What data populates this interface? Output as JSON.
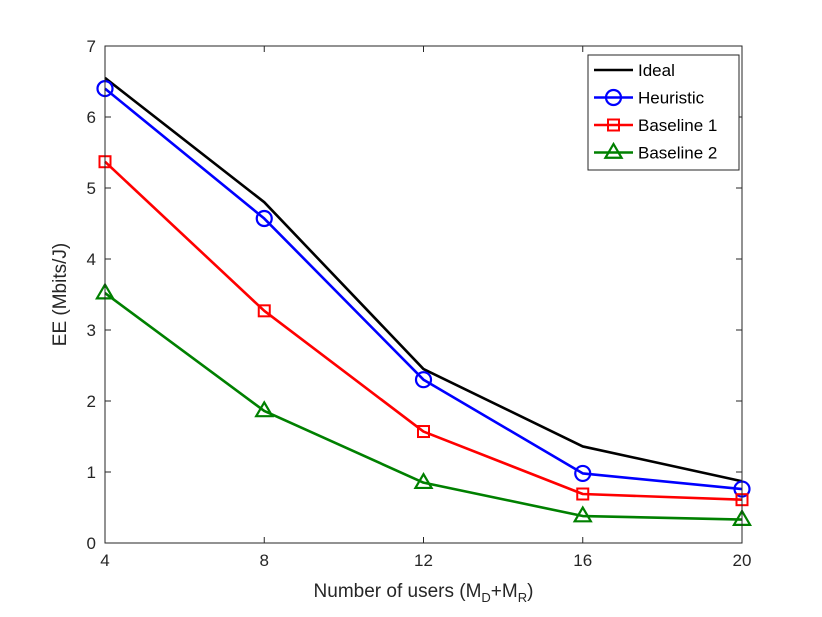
{
  "chart_data": {
    "type": "line",
    "title": "",
    "xlabel": "Number of users (M_D+M_R)",
    "xlabel_parts": {
      "prefix": "Number of users (M",
      "sub1": "D",
      "mid": "+M",
      "sub2": "R",
      "suffix": ")"
    },
    "ylabel": "EE (Mbits/J)",
    "x": [
      4,
      8,
      12,
      16,
      20
    ],
    "xlim": [
      4,
      20
    ],
    "ylim": [
      0,
      7
    ],
    "xticks": [
      "4",
      "8",
      "12",
      "16",
      "20"
    ],
    "yticks": [
      "0",
      "1",
      "2",
      "3",
      "4",
      "5",
      "6",
      "7"
    ],
    "grid": false,
    "legend_position": "top-right",
    "series": [
      {
        "name": "Ideal",
        "color": "#000000",
        "marker": "none",
        "values": [
          6.55,
          4.8,
          2.45,
          1.36,
          0.87
        ]
      },
      {
        "name": "Heuristic",
        "color": "#0000ff",
        "marker": "circle",
        "values": [
          6.4,
          4.57,
          2.3,
          0.98,
          0.76
        ]
      },
      {
        "name": "Baseline 1",
        "color": "#ff0000",
        "marker": "square",
        "values": [
          5.37,
          3.27,
          1.57,
          0.69,
          0.61
        ]
      },
      {
        "name": "Baseline 2",
        "color": "#008000",
        "marker": "triangle",
        "values": [
          3.52,
          1.86,
          0.85,
          0.38,
          0.33
        ]
      }
    ]
  }
}
